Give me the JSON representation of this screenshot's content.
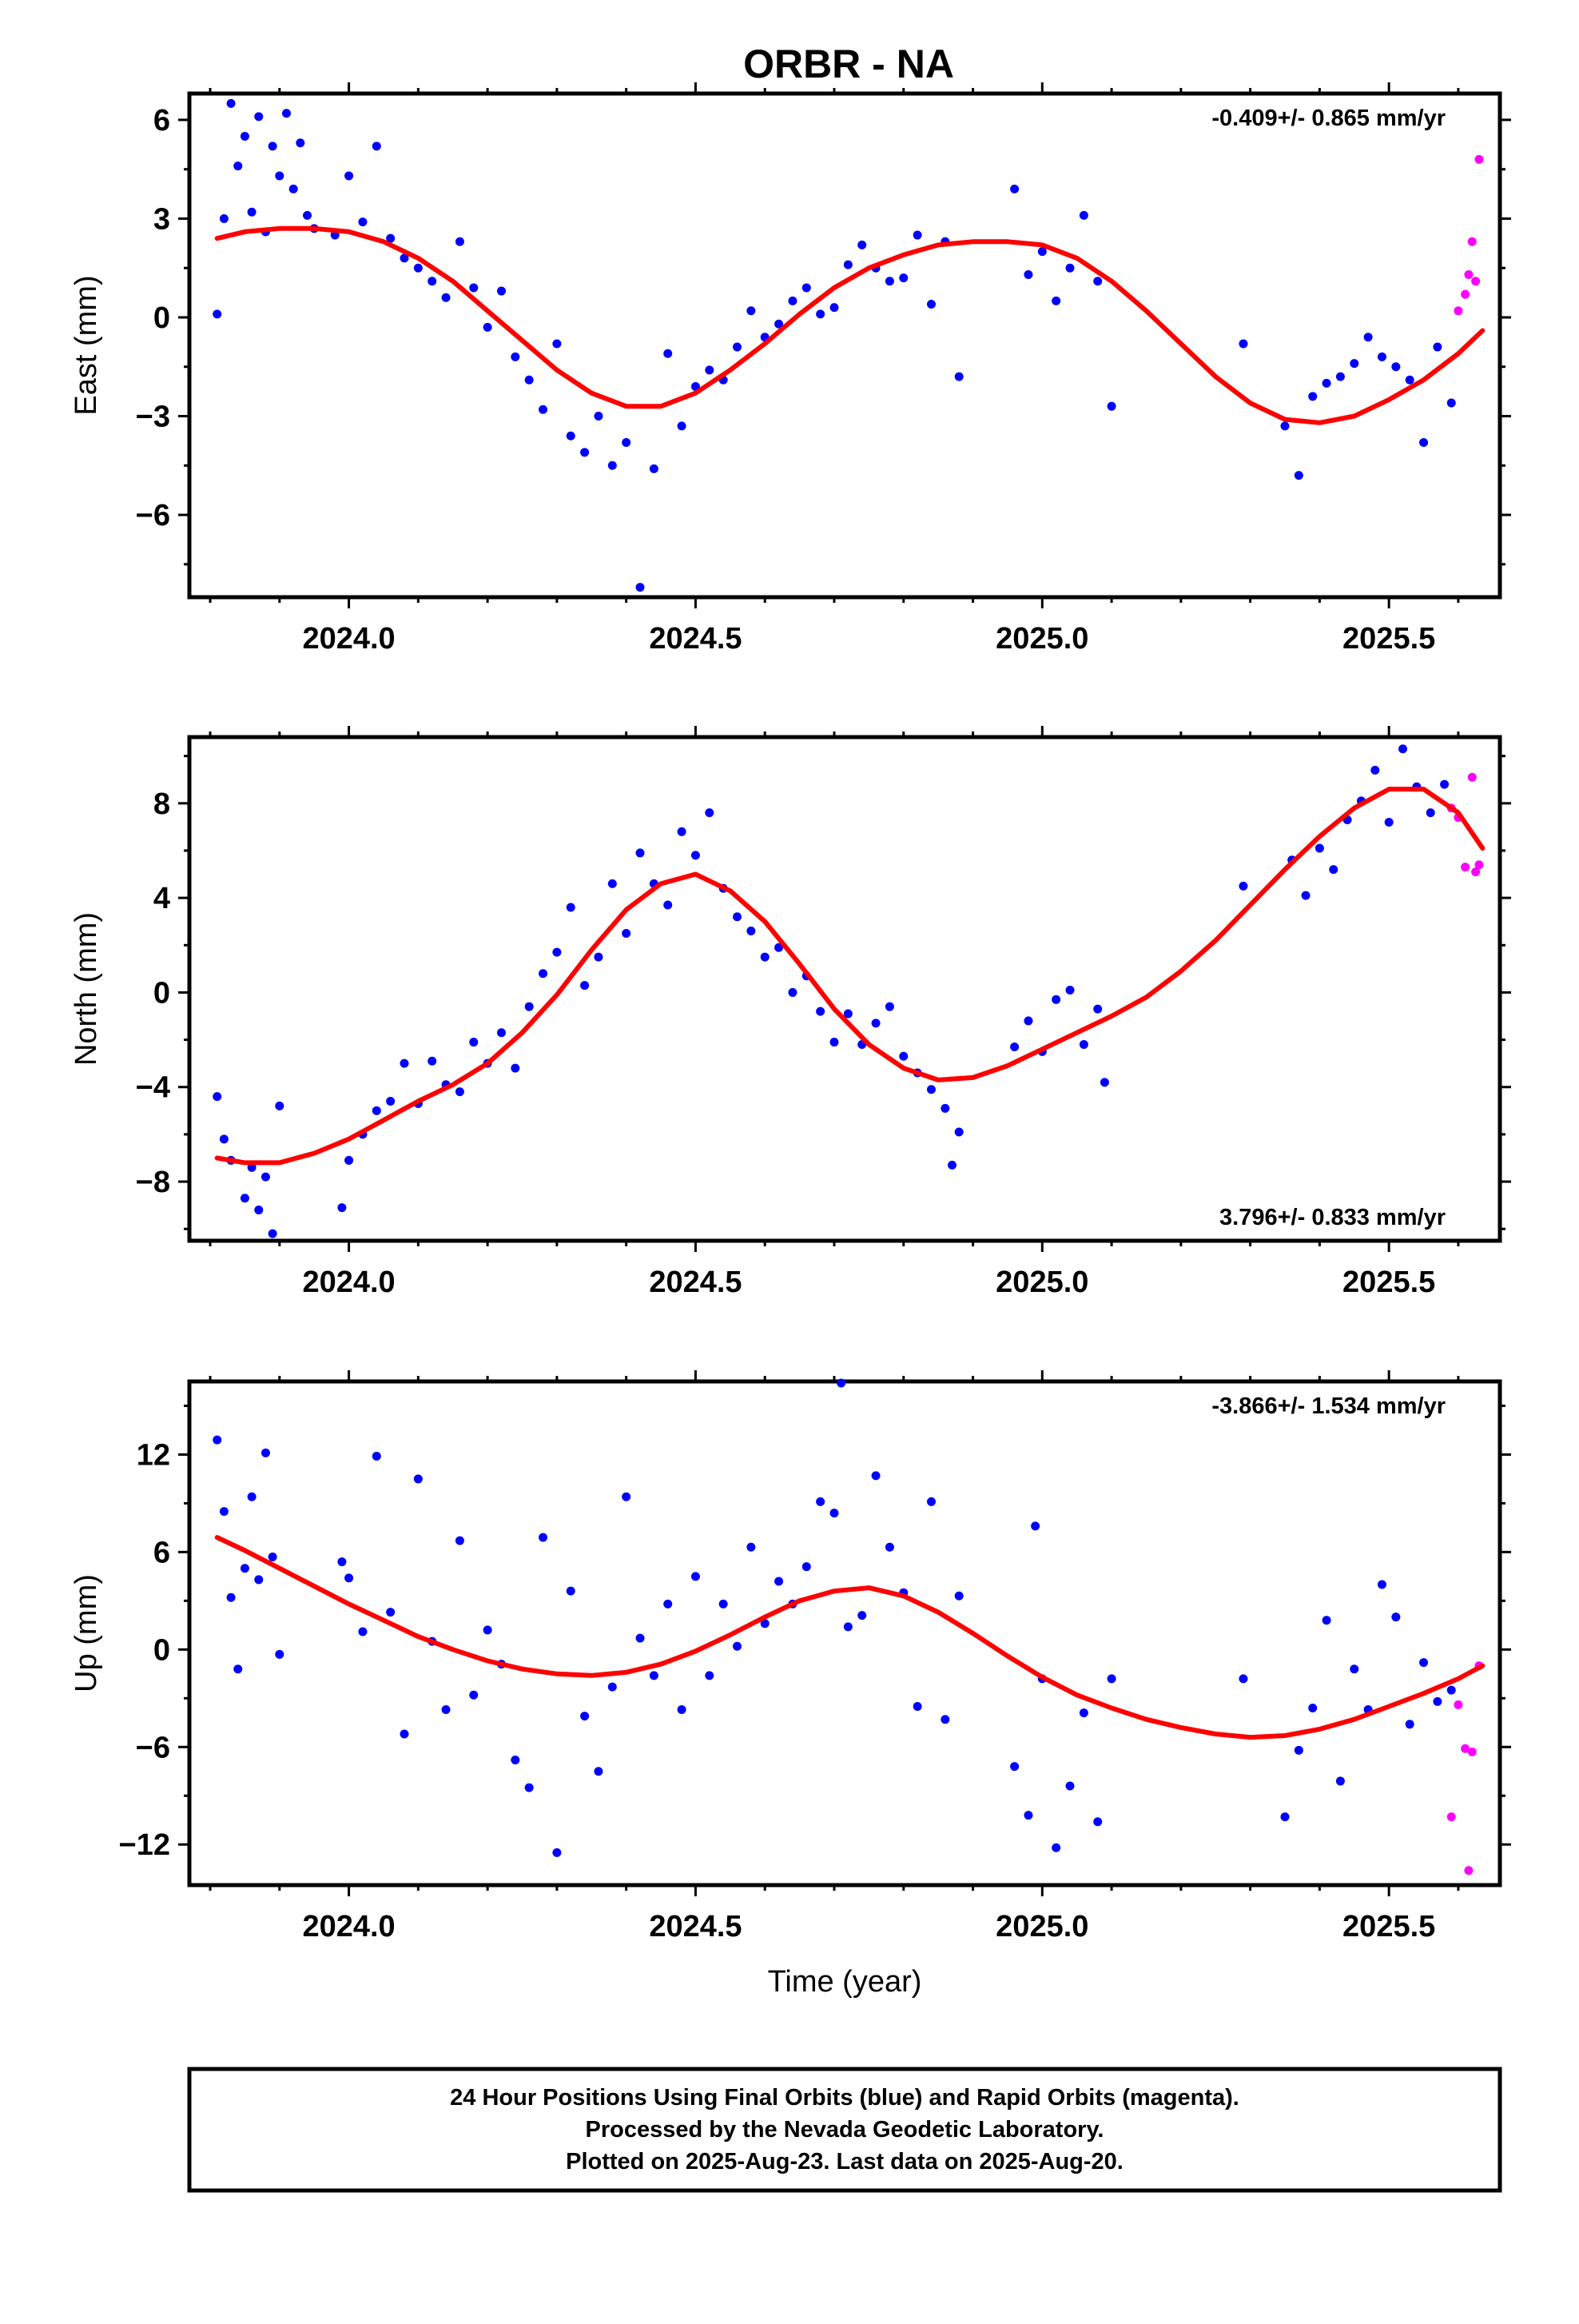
{
  "title": "ORBR - NA",
  "colors": {
    "final_orbits": "#0000ff",
    "rapid_orbits": "#ff00ff",
    "model_fit": "#ff0000",
    "frame": "#000000"
  },
  "footer": {
    "line1": "24 Hour Positions Using Final Orbits (blue) and Rapid Orbits (magenta).",
    "line2": "Processed by the Nevada Geodetic Laboratory.",
    "line3": "Plotted on 2025-Aug-23. Last data on 2025-Aug-20."
  },
  "chart_data": [
    {
      "type": "scatter",
      "ylabel": "East (mm)",
      "xlabel": "",
      "xlim": [
        2023.77,
        2025.66
      ],
      "ylim": [
        -8.5,
        6.8
      ],
      "x_ticks": [
        "2024.0",
        "2024.5",
        "2025.0",
        "2025.5"
      ],
      "y_ticks": [
        6,
        3,
        0,
        -3,
        -6
      ],
      "rate_label": "-0.409+/- 0.865 mm/yr",
      "rate_position": "top-right",
      "grid": false,
      "fit": {
        "x": [
          2023.81,
          2023.85,
          2023.9,
          2023.95,
          2024.0,
          2024.05,
          2024.1,
          2024.15,
          2024.2,
          2024.25,
          2024.3,
          2024.35,
          2024.4,
          2024.45,
          2024.5,
          2024.55,
          2024.6,
          2024.65,
          2024.7,
          2024.75,
          2024.8,
          2024.85,
          2024.9,
          2024.95,
          2025.0,
          2025.05,
          2025.1,
          2025.15,
          2025.2,
          2025.25,
          2025.3,
          2025.35,
          2025.4,
          2025.45,
          2025.5,
          2025.55,
          2025.6,
          2025.635
        ],
        "y": [
          2.4,
          2.6,
          2.7,
          2.7,
          2.6,
          2.3,
          1.8,
          1.1,
          0.2,
          -0.7,
          -1.6,
          -2.3,
          -2.7,
          -2.7,
          -2.3,
          -1.6,
          -0.8,
          0.1,
          0.9,
          1.5,
          1.9,
          2.2,
          2.3,
          2.3,
          2.2,
          1.8,
          1.1,
          0.2,
          -0.8,
          -1.8,
          -2.6,
          -3.1,
          -3.2,
          -3.0,
          -2.5,
          -1.9,
          -1.1,
          -0.4
        ]
      },
      "final_orbits": {
        "x": [
          2023.81,
          2023.82,
          2023.83,
          2023.84,
          2023.85,
          2023.86,
          2023.87,
          2023.88,
          2023.89,
          2023.9,
          2023.91,
          2023.92,
          2023.93,
          2023.94,
          2023.95,
          2023.98,
          2024.0,
          2024.02,
          2024.04,
          2024.06,
          2024.08,
          2024.1,
          2024.12,
          2024.14,
          2024.16,
          2024.18,
          2024.2,
          2024.22,
          2024.24,
          2024.26,
          2024.28,
          2024.3,
          2024.32,
          2024.34,
          2024.36,
          2024.38,
          2024.4,
          2024.42,
          2024.44,
          2024.46,
          2024.48,
          2024.5,
          2024.52,
          2024.54,
          2024.56,
          2024.58,
          2024.6,
          2024.62,
          2024.64,
          2024.66,
          2024.68,
          2024.7,
          2024.72,
          2024.74,
          2024.76,
          2024.78,
          2024.8,
          2024.82,
          2024.84,
          2024.86,
          2024.88,
          2024.96,
          2024.98,
          2025.0,
          2025.02,
          2025.04,
          2025.06,
          2025.08,
          2025.1,
          2025.29,
          2025.35,
          2025.37,
          2025.39,
          2025.41,
          2025.43,
          2025.45,
          2025.47,
          2025.49,
          2025.51,
          2025.53,
          2025.55,
          2025.57,
          2025.59
        ],
        "y": [
          0.1,
          3.0,
          6.5,
          4.6,
          5.5,
          3.2,
          6.1,
          2.6,
          5.2,
          4.3,
          6.2,
          3.9,
          5.3,
          3.1,
          2.7,
          2.5,
          4.3,
          2.9,
          5.2,
          2.4,
          1.8,
          1.5,
          1.1,
          0.6,
          2.3,
          0.9,
          -0.3,
          0.8,
          -1.2,
          -1.9,
          -2.8,
          -0.8,
          -3.6,
          -4.1,
          -3.0,
          -4.5,
          -3.8,
          -8.2,
          -4.6,
          -1.1,
          -3.3,
          -2.1,
          -1.6,
          -1.9,
          -0.9,
          0.2,
          -0.6,
          -0.2,
          0.5,
          0.9,
          0.1,
          0.3,
          1.6,
          2.2,
          1.5,
          1.1,
          1.2,
          2.5,
          0.4,
          2.3,
          -1.8,
          3.9,
          1.3,
          2.0,
          0.5,
          1.5,
          3.1,
          1.1,
          -2.7,
          -0.8,
          -3.3,
          -4.8,
          -2.4,
          -2.0,
          -1.8,
          -1.4,
          -0.6,
          -1.2,
          -1.5,
          -1.9,
          -3.8,
          -0.9,
          -2.6
        ]
      },
      "rapid_orbits": {
        "x": [
          2025.6,
          2025.61,
          2025.615,
          2025.62,
          2025.625,
          2025.63
        ],
        "y": [
          0.2,
          0.7,
          1.3,
          2.3,
          1.1,
          4.8
        ]
      }
    },
    {
      "type": "scatter",
      "ylabel": "North (mm)",
      "xlabel": "",
      "xlim": [
        2023.77,
        2025.66
      ],
      "ylim": [
        -10.5,
        10.8
      ],
      "x_ticks": [
        "2024.0",
        "2024.5",
        "2025.0",
        "2025.5"
      ],
      "y_ticks": [
        8,
        4,
        0,
        -4,
        -8
      ],
      "rate_label": "3.796+/- 0.833 mm/yr",
      "rate_position": "bottom-right",
      "grid": false,
      "fit": {
        "x": [
          2023.81,
          2023.85,
          2023.9,
          2023.95,
          2024.0,
          2024.05,
          2024.1,
          2024.15,
          2024.2,
          2024.25,
          2024.3,
          2024.35,
          2024.4,
          2024.45,
          2024.5,
          2024.55,
          2024.6,
          2024.65,
          2024.7,
          2024.75,
          2024.8,
          2024.85,
          2024.9,
          2024.95,
          2025.0,
          2025.05,
          2025.1,
          2025.15,
          2025.2,
          2025.25,
          2025.3,
          2025.35,
          2025.4,
          2025.45,
          2025.5,
          2025.55,
          2025.6,
          2025.635
        ],
        "y": [
          -7.0,
          -7.2,
          -7.2,
          -6.8,
          -6.2,
          -5.4,
          -4.6,
          -3.9,
          -3.0,
          -1.7,
          -0.1,
          1.8,
          3.5,
          4.6,
          5.0,
          4.3,
          3.0,
          1.2,
          -0.7,
          -2.2,
          -3.2,
          -3.7,
          -3.6,
          -3.1,
          -2.4,
          -1.7,
          -1.0,
          -0.2,
          0.9,
          2.2,
          3.7,
          5.2,
          6.6,
          7.8,
          8.6,
          8.6,
          7.6,
          6.1
        ]
      },
      "final_orbits": {
        "x": [
          2023.81,
          2023.82,
          2023.83,
          2023.85,
          2023.86,
          2023.87,
          2023.88,
          2023.89,
          2023.9,
          2023.99,
          2024.0,
          2024.02,
          2024.04,
          2024.06,
          2024.08,
          2024.1,
          2024.12,
          2024.14,
          2024.16,
          2024.18,
          2024.2,
          2024.22,
          2024.24,
          2024.26,
          2024.28,
          2024.3,
          2024.32,
          2024.34,
          2024.36,
          2024.38,
          2024.4,
          2024.42,
          2024.44,
          2024.46,
          2024.48,
          2024.5,
          2024.52,
          2024.54,
          2024.56,
          2024.58,
          2024.6,
          2024.62,
          2024.64,
          2024.66,
          2024.68,
          2024.7,
          2024.72,
          2024.74,
          2024.76,
          2024.78,
          2024.8,
          2024.82,
          2024.84,
          2024.86,
          2024.87,
          2024.88,
          2024.96,
          2024.98,
          2025.0,
          2025.02,
          2025.04,
          2025.06,
          2025.08,
          2025.09,
          2025.29,
          2025.36,
          2025.38,
          2025.4,
          2025.42,
          2025.44,
          2025.46,
          2025.48,
          2025.5,
          2025.52,
          2025.54,
          2025.56,
          2025.58
        ],
        "y": [
          -4.4,
          -6.2,
          -7.1,
          -8.7,
          -7.4,
          -9.2,
          -7.8,
          -10.2,
          -4.8,
          -9.1,
          -7.1,
          -6.0,
          -5.0,
          -4.6,
          -3.0,
          -4.7,
          -2.9,
          -3.9,
          -4.2,
          -2.1,
          -3.0,
          -1.7,
          -3.2,
          -0.6,
          0.8,
          1.7,
          3.6,
          0.3,
          1.5,
          4.6,
          2.5,
          5.9,
          4.6,
          3.7,
          6.8,
          5.8,
          7.6,
          4.4,
          3.2,
          2.6,
          1.5,
          1.9,
          0.0,
          0.7,
          -0.8,
          -2.1,
          -0.9,
          -2.2,
          -1.3,
          -0.6,
          -2.7,
          -3.4,
          -4.1,
          -4.9,
          -7.3,
          -5.9,
          -2.3,
          -1.2,
          -2.5,
          -0.3,
          0.1,
          -2.2,
          -0.7,
          -3.8,
          4.5,
          5.6,
          4.1,
          6.1,
          5.2,
          7.3,
          8.1,
          9.4,
          7.2,
          10.3,
          8.7,
          7.6,
          8.8
        ]
      },
      "rapid_orbits": {
        "x": [
          2025.59,
          2025.6,
          2025.61,
          2025.62,
          2025.625,
          2025.63
        ],
        "y": [
          7.8,
          7.4,
          5.3,
          9.1,
          5.1,
          5.4
        ]
      }
    },
    {
      "type": "scatter",
      "ylabel": "Up (mm)",
      "xlabel": "Time (year)",
      "xlim": [
        2023.77,
        2025.66
      ],
      "ylim": [
        -14.5,
        16.5
      ],
      "x_ticks": [
        "2024.0",
        "2024.5",
        "2025.0",
        "2025.5"
      ],
      "y_ticks": [
        12,
        6,
        0,
        -6,
        -12
      ],
      "rate_label": "-3.866+/- 1.534 mm/yr",
      "rate_position": "top-right",
      "grid": false,
      "fit": {
        "x": [
          2023.81,
          2023.85,
          2023.9,
          2023.95,
          2024.0,
          2024.05,
          2024.1,
          2024.15,
          2024.2,
          2024.25,
          2024.3,
          2024.35,
          2024.4,
          2024.45,
          2024.5,
          2024.55,
          2024.6,
          2024.65,
          2024.7,
          2024.75,
          2024.8,
          2024.85,
          2024.9,
          2024.95,
          2025.0,
          2025.05,
          2025.1,
          2025.15,
          2025.2,
          2025.25,
          2025.3,
          2025.35,
          2025.4,
          2025.45,
          2025.5,
          2025.55,
          2025.6,
          2025.635
        ],
        "y": [
          6.9,
          6.1,
          5.0,
          3.9,
          2.8,
          1.8,
          0.8,
          0.0,
          -0.7,
          -1.2,
          -1.5,
          -1.6,
          -1.4,
          -0.9,
          -0.1,
          0.9,
          2.0,
          3.0,
          3.6,
          3.8,
          3.3,
          2.3,
          1.0,
          -0.4,
          -1.7,
          -2.8,
          -3.6,
          -4.3,
          -4.8,
          -5.2,
          -5.4,
          -5.3,
          -4.9,
          -4.3,
          -3.5,
          -2.7,
          -1.8,
          -1.0
        ]
      },
      "final_orbits": {
        "x": [
          2023.81,
          2023.82,
          2023.83,
          2023.84,
          2023.85,
          2023.86,
          2023.87,
          2023.88,
          2023.89,
          2023.9,
          2023.99,
          2024.0,
          2024.02,
          2024.04,
          2024.06,
          2024.08,
          2024.1,
          2024.12,
          2024.14,
          2024.16,
          2024.18,
          2024.2,
          2024.22,
          2024.24,
          2024.26,
          2024.28,
          2024.3,
          2024.32,
          2024.34,
          2024.36,
          2024.38,
          2024.4,
          2024.42,
          2024.44,
          2024.46,
          2024.48,
          2024.5,
          2024.52,
          2024.54,
          2024.56,
          2024.58,
          2024.6,
          2024.62,
          2024.64,
          2024.66,
          2024.68,
          2024.7,
          2024.71,
          2024.72,
          2024.74,
          2024.76,
          2024.78,
          2024.8,
          2024.82,
          2024.84,
          2024.86,
          2024.88,
          2024.96,
          2024.98,
          2024.99,
          2025.0,
          2025.02,
          2025.04,
          2025.06,
          2025.08,
          2025.1,
          2025.29,
          2025.35,
          2025.37,
          2025.39,
          2025.41,
          2025.43,
          2025.45,
          2025.47,
          2025.49,
          2025.51,
          2025.53,
          2025.55,
          2025.57,
          2025.59
        ],
        "y": [
          12.9,
          8.5,
          3.2,
          -1.2,
          5.0,
          9.4,
          4.3,
          12.1,
          5.7,
          -0.3,
          5.4,
          4.4,
          1.1,
          11.9,
          2.3,
          -5.2,
          10.5,
          0.5,
          -3.7,
          6.7,
          -2.8,
          1.2,
          -0.9,
          -6.8,
          -8.5,
          6.9,
          -12.5,
          3.6,
          -4.1,
          -7.5,
          -2.3,
          9.4,
          0.7,
          -1.6,
          2.8,
          -3.7,
          4.5,
          -1.6,
          2.8,
          0.2,
          6.3,
          1.6,
          4.2,
          2.8,
          5.1,
          9.1,
          8.4,
          16.4,
          1.4,
          2.1,
          10.7,
          6.3,
          3.5,
          -3.5,
          9.1,
          -4.3,
          3.3,
          -7.2,
          -10.2,
          7.6,
          -1.8,
          -12.2,
          -8.4,
          -3.9,
          -10.6,
          -1.8,
          -1.8,
          -10.3,
          -6.2,
          -3.6,
          1.8,
          -8.1,
          -1.2,
          -3.7,
          4.0,
          2.0,
          -4.6,
          -0.8,
          -3.2,
          -2.5
        ]
      },
      "rapid_orbits": {
        "x": [
          2025.59,
          2025.6,
          2025.61,
          2025.615,
          2025.62,
          2025.63
        ],
        "y": [
          -10.3,
          -3.4,
          -6.1,
          -13.6,
          -6.3,
          -1.0
        ]
      }
    }
  ]
}
